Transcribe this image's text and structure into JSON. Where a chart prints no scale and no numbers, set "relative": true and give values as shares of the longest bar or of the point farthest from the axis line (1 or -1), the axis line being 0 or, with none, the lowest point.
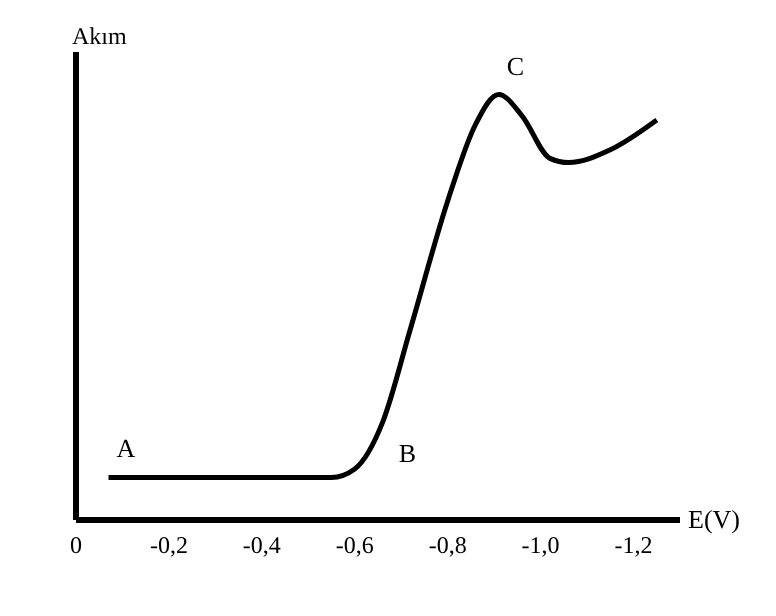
{
  "chart_data": {
    "type": "line",
    "relative": true,
    "xlabel": "E(V)",
    "ylabel": "Akım",
    "x": [
      -0.07,
      -0.55,
      -0.6,
      -0.66,
      -0.72,
      -0.8,
      -0.86,
      -0.91,
      -0.96,
      -1.02,
      -1.06,
      -1.15,
      -1.25
    ],
    "series": [
      {
        "color": "#000000",
        "values": [
          0.1,
          0.1,
          0.12,
          0.23,
          0.45,
          0.75,
          0.93,
          1,
          0.95,
          0.85,
          0.84,
          0.87,
          0.94
        ]
      }
    ],
    "xlim": [
      0,
      -1.3
    ],
    "xticks": [
      0,
      {
        "value": -0.2,
        "label": "-0,2"
      },
      {
        "value": -0.4,
        "label": "-0,4"
      },
      {
        "value": -0.6,
        "label": "-0,6"
      },
      {
        "value": -0.8,
        "label": "-0,8"
      },
      {
        "value": -1.0,
        "label": "-1,0"
      },
      {
        "value": -1.2,
        "label": "-1,2"
      }
    ],
    "annotations": [
      {
        "text": "A",
        "x": -0.07,
        "y": 0.1
      },
      {
        "text": "B",
        "x": -0.66,
        "y": 0.23
      },
      {
        "text": "C",
        "x": -0.91,
        "y": 1
      }
    ],
    "grid": false,
    "legend": false,
    "marker": "none",
    "line_style": "solid"
  }
}
